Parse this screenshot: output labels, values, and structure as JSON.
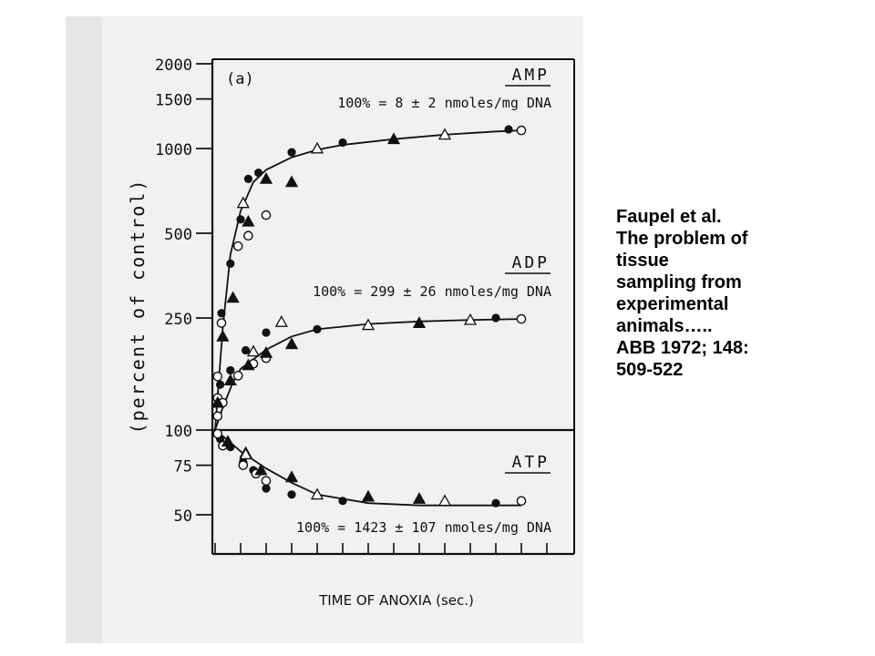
{
  "chart_data": {
    "type": "scatter",
    "panel_label": "(a)",
    "xlabel": "TIME OF ANOXIA (sec.)",
    "ylabel": "(percent of control)",
    "y_scale": "log",
    "y_ticks": [
      "2000",
      "1500",
      "1000",
      "500",
      "250",
      "100",
      "75",
      "50"
    ],
    "y_tick_values": [
      2000,
      1500,
      1000,
      500,
      250,
      100,
      75,
      50
    ],
    "reference_line": 100,
    "x_range": [
      0,
      13
    ],
    "series": [
      {
        "name": "AMP",
        "annotation": "100% = 8 ± 2 nmoles/mg DNA",
        "curve": [
          [
            0,
            100
          ],
          [
            0.3,
            230
          ],
          [
            0.6,
            420
          ],
          [
            1,
            600
          ],
          [
            1.5,
            760
          ],
          [
            2,
            840
          ],
          [
            3,
            930
          ],
          [
            4,
            990
          ],
          [
            5,
            1030
          ],
          [
            7,
            1080
          ],
          [
            9,
            1120
          ],
          [
            11,
            1150
          ],
          [
            12,
            1160
          ]
        ],
        "filled_circles": [
          [
            0.25,
            260
          ],
          [
            0.6,
            390
          ],
          [
            1,
            560
          ],
          [
            1.3,
            780
          ],
          [
            1.7,
            820
          ],
          [
            3,
            970
          ],
          [
            5,
            1050
          ],
          [
            11.5,
            1170
          ]
        ],
        "filled_triangles": [
          [
            0.3,
            215
          ],
          [
            0.7,
            295
          ],
          [
            1.3,
            550
          ],
          [
            2,
            780
          ],
          [
            3,
            760
          ],
          [
            7,
            1080
          ]
        ],
        "open_circles": [
          [
            0.1,
            130
          ],
          [
            0.25,
            240
          ],
          [
            0.9,
            450
          ],
          [
            1.3,
            490
          ],
          [
            2,
            580
          ],
          [
            12,
            1160
          ]
        ],
        "open_triangles": [
          [
            1.1,
            640
          ],
          [
            4,
            1000
          ],
          [
            9,
            1120
          ]
        ]
      },
      {
        "name": "ADP",
        "annotation": "100% = 299 ± 26 nmoles/mg DNA",
        "curve": [
          [
            0,
            100
          ],
          [
            0.3,
            120
          ],
          [
            0.7,
            148
          ],
          [
            1,
            165
          ],
          [
            2,
            193
          ],
          [
            3,
            215
          ],
          [
            4,
            228
          ],
          [
            6,
            238
          ],
          [
            8,
            243
          ],
          [
            10,
            246
          ],
          [
            12,
            248
          ]
        ],
        "filled_circles": [
          [
            0.2,
            145
          ],
          [
            0.6,
            163
          ],
          [
            1.2,
            192
          ],
          [
            2,
            222
          ],
          [
            4,
            228
          ],
          [
            11,
            250
          ]
        ],
        "filled_triangles": [
          [
            0.1,
            125
          ],
          [
            0.6,
            150
          ],
          [
            1.3,
            170
          ],
          [
            2,
            188
          ],
          [
            3,
            202
          ],
          [
            8,
            240
          ]
        ],
        "open_circles": [
          [
            0.1,
            155
          ],
          [
            0.3,
            125
          ],
          [
            0.1,
            112
          ],
          [
            0.9,
            156
          ],
          [
            1.5,
            172
          ],
          [
            2,
            180
          ],
          [
            12,
            248
          ]
        ],
        "open_triangles": [
          [
            1.5,
            190
          ],
          [
            2.6,
            242
          ],
          [
            6,
            236
          ],
          [
            10,
            246
          ]
        ]
      },
      {
        "name": "ATP",
        "annotation": "100% = 1423 ± 107 nmoles/mg DNA",
        "curve": [
          [
            0,
            100
          ],
          [
            0.5,
            92
          ],
          [
            1,
            84
          ],
          [
            2,
            73
          ],
          [
            3,
            65
          ],
          [
            4,
            59
          ],
          [
            6,
            55
          ],
          [
            8,
            54
          ],
          [
            10,
            54
          ],
          [
            12,
            54
          ]
        ],
        "filled_circles": [
          [
            0.2,
            93
          ],
          [
            0.6,
            87
          ],
          [
            1.1,
            77
          ],
          [
            1.5,
            72
          ],
          [
            2,
            62
          ],
          [
            3,
            59
          ],
          [
            5,
            56
          ],
          [
            11,
            55
          ]
        ],
        "filled_triangles": [
          [
            0.5,
            91
          ],
          [
            1.2,
            83
          ],
          [
            1.8,
            72
          ],
          [
            3,
            68
          ],
          [
            6,
            58
          ],
          [
            8,
            57
          ]
        ],
        "open_circles": [
          [
            0.1,
            97
          ],
          [
            0.3,
            88
          ],
          [
            1.1,
            75
          ],
          [
            1.6,
            70
          ],
          [
            2,
            66
          ],
          [
            12,
            56
          ]
        ],
        "open_triangles": [
          [
            1.2,
            82
          ],
          [
            4,
            59
          ],
          [
            9,
            56
          ]
        ]
      }
    ]
  },
  "caption": {
    "lines": [
      "Faupel et al.",
      "The problem of",
      "tissue",
      "sampling from",
      "experimental",
      "animals…..",
      "ABB 1972; 148:",
      "509-522"
    ]
  }
}
